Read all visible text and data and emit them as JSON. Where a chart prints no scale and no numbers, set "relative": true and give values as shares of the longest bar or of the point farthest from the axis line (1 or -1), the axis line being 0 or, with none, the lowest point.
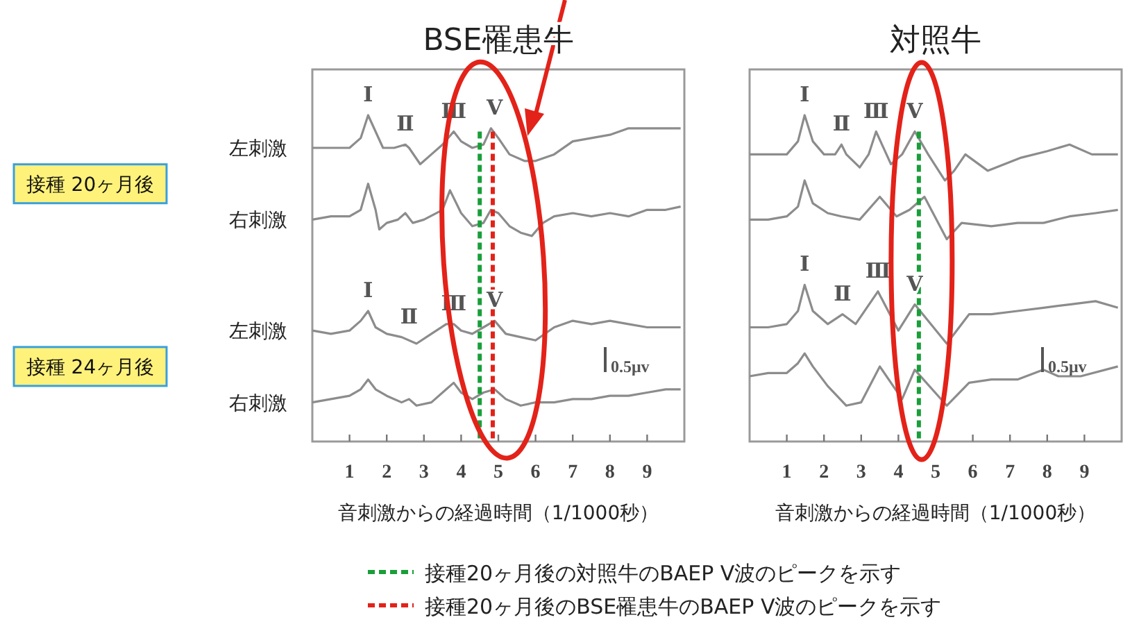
{
  "chart_data": [
    {
      "type": "line",
      "title": "BSE罹患牛",
      "xlabel": "音刺激からの経過時間（1/1000秒）",
      "relative": true,
      "xlim": [
        0,
        10
      ],
      "xticks": [
        1,
        2,
        3,
        4,
        5,
        6,
        7,
        8,
        9
      ],
      "grid": false,
      "line_style": "solid",
      "marker": "none",
      "legend": "bottom",
      "series": [
        {
          "name": "左刺激",
          "color": "#8c8c8c",
          "x": [
            0,
            0.5,
            1,
            1.3,
            1.5,
            1.7,
            1.9,
            2.2,
            2.5,
            2.6,
            2.9,
            3.2,
            3.5,
            3.8,
            4,
            4.3,
            4.6,
            4.8,
            5,
            5.3,
            5.7,
            6,
            6.5,
            7,
            7.5,
            8,
            8.5,
            9,
            9.5,
            9.9
          ],
          "values": [
            0.9,
            0.9,
            0.9,
            0.93,
            1,
            0.95,
            0.9,
            0.9,
            0.91,
            0.9,
            0.85,
            0.88,
            0.91,
            0.95,
            0.92,
            0.9,
            0.91,
            0.96,
            0.93,
            0.88,
            0.86,
            0.86,
            0.88,
            0.92,
            0.93,
            0.94,
            0.96,
            0.96,
            0.96,
            0.96
          ]
        },
        {
          "name": "右刺激",
          "color": "#8c8c8c",
          "x": [
            0,
            0.5,
            1,
            1.3,
            1.5,
            1.7,
            1.8,
            2,
            2.3,
            2.5,
            2.7,
            3,
            3.5,
            3.7,
            4,
            4.3,
            4.6,
            4.8,
            5,
            5.3,
            5.6,
            5.9,
            6.2,
            6.5,
            7,
            7.5,
            8,
            8.5,
            9,
            9.5,
            9.9
          ],
          "values": [
            0.68,
            0.69,
            0.69,
            0.71,
            0.79,
            0.71,
            0.65,
            0.67,
            0.68,
            0.7,
            0.67,
            0.68,
            0.71,
            0.77,
            0.7,
            0.66,
            0.67,
            0.71,
            0.7,
            0.66,
            0.64,
            0.63,
            0.67,
            0.69,
            0.7,
            0.69,
            0.7,
            0.69,
            0.71,
            0.71,
            0.72
          ]
        },
        {
          "name": "左刺激",
          "color": "#8c8c8c",
          "x": [
            0,
            0.5,
            1,
            1.3,
            1.5,
            1.7,
            2,
            2.4,
            2.8,
            3.2,
            3.6,
            3.8,
            4,
            4.3,
            4.6,
            4.9,
            5.2,
            5.6,
            6,
            6.5,
            7,
            7.5,
            8,
            8.5,
            9,
            9.5,
            9.9
          ],
          "values": [
            0.34,
            0.33,
            0.34,
            0.37,
            0.4,
            0.35,
            0.33,
            0.32,
            0.3,
            0.33,
            0.36,
            0.36,
            0.34,
            0.33,
            0.35,
            0.37,
            0.33,
            0.32,
            0.31,
            0.35,
            0.37,
            0.36,
            0.37,
            0.36,
            0.35,
            0.35,
            0.35
          ]
        },
        {
          "name": "右刺激",
          "color": "#8c8c8c",
          "x": [
            0,
            0.5,
            1,
            1.3,
            1.5,
            1.7,
            2,
            2.4,
            2.6,
            2.8,
            3.2,
            3.6,
            3.8,
            4,
            4.3,
            4.6,
            4.9,
            5.2,
            5.6,
            6,
            6.5,
            7,
            7.5,
            8,
            8.5,
            9,
            9.5,
            9.9
          ],
          "values": [
            0.12,
            0.13,
            0.14,
            0.16,
            0.19,
            0.16,
            0.14,
            0.12,
            0.13,
            0.11,
            0.12,
            0.16,
            0.18,
            0.15,
            0.13,
            0.15,
            0.16,
            0.13,
            0.11,
            0.12,
            0.12,
            0.13,
            0.13,
            0.14,
            0.14,
            0.15,
            0.16,
            0.16
          ]
        }
      ],
      "ref_lines": [
        {
          "axis": "x",
          "value": 4.5,
          "color": "#1a9e3a",
          "line_style": "dashed",
          "label": "接種20ヶ月後の対照牛のBAEP Ⅴ波のピークを示す"
        },
        {
          "axis": "x",
          "value": 4.85,
          "color": "#e32219",
          "line_style": "dashed",
          "label": "接種20ヶ月後のBSE罹患牛のBAEP Ⅴ波のピークを示す"
        }
      ],
      "annotations": [
        {
          "text": "Ⅰ",
          "x": 1.5,
          "y": 1
        },
        {
          "text": "Ⅱ",
          "x": 2.5,
          "y": 0.91
        },
        {
          "text": "Ⅲ",
          "x": 3.8,
          "y": 0.95
        },
        {
          "text": "Ⅴ",
          "x": 4.9,
          "y": 0.96
        },
        {
          "text": "Ⅰ",
          "x": 1.5,
          "y": 0.4
        },
        {
          "text": "Ⅱ",
          "x": 2.6,
          "y": 0.32
        },
        {
          "text": "Ⅲ",
          "x": 3.8,
          "y": 0.36
        },
        {
          "text": "Ⅴ",
          "x": 4.9,
          "y": 0.37
        },
        "接種 20ヶ月後",
        "接種 24ヶ月後",
        "0.5μv"
      ]
    },
    {
      "type": "line",
      "title": "対照牛",
      "xlabel": "音刺激からの経過時間（1/1000秒）",
      "relative": true,
      "xlim": [
        0,
        10
      ],
      "xticks": [
        1,
        2,
        3,
        4,
        5,
        6,
        7,
        8,
        9
      ],
      "grid": false,
      "line_style": "solid",
      "marker": "none",
      "series": [
        {
          "color": "#8c8c8c",
          "x": [
            0,
            0.5,
            1,
            1.3,
            1.48,
            1.7,
            2,
            2.3,
            2.47,
            2.6,
            2.96,
            3.2,
            3.4,
            3.8,
            4.1,
            4.44,
            4.8,
            5.25,
            5.5,
            5.8,
            6.4,
            7.3,
            8,
            8.6,
            9.2,
            9.9
          ],
          "values": [
            0.88,
            0.88,
            0.88,
            0.92,
            1,
            0.92,
            0.88,
            0.88,
            0.91,
            0.88,
            0.84,
            0.88,
            0.95,
            0.85,
            0.88,
            0.95,
            0.88,
            0.8,
            0.83,
            0.88,
            0.83,
            0.87,
            0.89,
            0.91,
            0.88,
            0.88
          ]
        },
        {
          "color": "#8c8c8c",
          "x": [
            0,
            0.5,
            1,
            1.3,
            1.48,
            1.7,
            2.1,
            2.47,
            2.96,
            3.5,
            3.95,
            4.3,
            4.7,
            5.3,
            5.7,
            6.5,
            7.2,
            7.9,
            8.6,
            9.3,
            9.9
          ],
          "values": [
            0.68,
            0.68,
            0.69,
            0.72,
            0.8,
            0.73,
            0.7,
            0.69,
            0.68,
            0.75,
            0.69,
            0.71,
            0.75,
            0.62,
            0.67,
            0.66,
            0.67,
            0.67,
            0.69,
            0.7,
            0.71
          ]
        },
        {
          "color": "#8c8c8c",
          "x": [
            0,
            0.5,
            1,
            1.3,
            1.48,
            1.7,
            2.1,
            2.5,
            2.85,
            3.45,
            4,
            4.44,
            5.3,
            5.9,
            6.5,
            7.2,
            7.9,
            8.6,
            9.3,
            9.9
          ],
          "values": [
            0.35,
            0.35,
            0.36,
            0.4,
            0.48,
            0.4,
            0.36,
            0.39,
            0.36,
            0.46,
            0.34,
            0.42,
            0.3,
            0.39,
            0.39,
            0.4,
            0.41,
            0.42,
            0.43,
            0.41
          ]
        },
        {
          "color": "#8c8c8c",
          "x": [
            0,
            0.5,
            1,
            1.3,
            1.48,
            1.7,
            2.1,
            2.6,
            3,
            3.5,
            4.1,
            4.44,
            5.3,
            5.9,
            6.5,
            7.2,
            7.9,
            8.3,
            8.9,
            9.9
          ],
          "values": [
            0.2,
            0.21,
            0.21,
            0.24,
            0.27,
            0.23,
            0.17,
            0.11,
            0.12,
            0.23,
            0.13,
            0.22,
            0.11,
            0.18,
            0.19,
            0.19,
            0.22,
            0.2,
            0.2,
            0.23
          ]
        }
      ],
      "ref_lines": [
        {
          "axis": "x",
          "value": 4.55,
          "color": "#1a9e3a",
          "line_style": "dashed"
        }
      ],
      "annotations": [
        {
          "text": "Ⅰ",
          "x": 1.48,
          "y": 1
        },
        {
          "text": "Ⅱ",
          "x": 2.47,
          "y": 0.91
        },
        {
          "text": "Ⅲ",
          "x": 3.4,
          "y": 0.95
        },
        {
          "text": "Ⅴ",
          "x": 4.44,
          "y": 0.95
        },
        {
          "text": "Ⅰ",
          "x": 1.48,
          "y": 0.48
        },
        {
          "text": "Ⅱ",
          "x": 2.5,
          "y": 0.39
        },
        {
          "text": "Ⅲ",
          "x": 3.45,
          "y": 0.46
        },
        {
          "text": "Ⅴ",
          "x": 4.44,
          "y": 0.42
        },
        "0.5μv"
      ]
    }
  ]
}
